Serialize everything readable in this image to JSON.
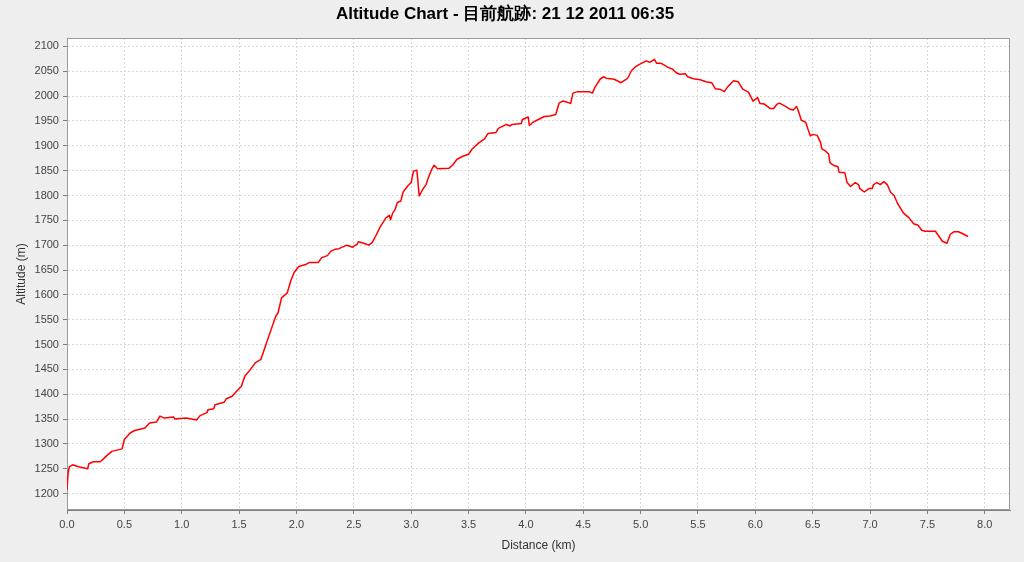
{
  "chart_data": {
    "type": "line",
    "title": "Altitude Chart - 目前航跡: 21 12 2011 06:35",
    "xlabel": "Distance (km)",
    "ylabel": "Altitude (m)",
    "x": [
      0,
      0.01,
      0.02,
      0.05,
      0.1,
      0.18,
      0.19,
      0.23,
      0.29,
      0.34,
      0.39,
      0.48,
      0.5,
      0.55,
      0.59,
      0.68,
      0.72,
      0.78,
      0.81,
      0.85,
      0.93,
      0.94,
      1.04,
      1.13,
      1.16,
      1.22,
      1.23,
      1.28,
      1.29,
      1.37,
      1.39,
      1.44,
      1.47,
      1.52,
      1.55,
      1.6,
      1.64,
      1.69,
      1.73,
      1.77,
      1.82,
      1.84,
      1.87,
      1.92,
      1.95,
      1.98,
      2.02,
      2.08,
      2.11,
      2.19,
      2.22,
      2.27,
      2.3,
      2.34,
      2.37,
      2.41,
      2.44,
      2.49,
      2.53,
      2.54,
      2.57,
      2.6,
      2.63,
      2.66,
      2.69,
      2.73,
      2.78,
      2.81,
      2.82,
      2.84,
      2.86,
      2.88,
      2.91,
      2.93,
      2.97,
      3.0,
      3.02,
      3.05,
      3.07,
      3.1,
      3.13,
      3.15,
      3.18,
      3.2,
      3.23,
      3.33,
      3.36,
      3.4,
      3.45,
      3.5,
      3.53,
      3.59,
      3.64,
      3.67,
      3.74,
      3.76,
      3.83,
      3.86,
      3.88,
      3.96,
      3.97,
      4.02,
      4.03,
      4.06,
      4.1,
      4.16,
      4.21,
      4.26,
      4.29,
      4.32,
      4.37,
      4.39,
      4.41,
      4.45,
      4.55,
      4.58,
      4.6,
      4.65,
      4.68,
      4.7,
      4.77,
      4.83,
      4.87,
      4.89,
      4.92,
      4.96,
      4.99,
      5.05,
      5.08,
      5.12,
      5.14,
      5.18,
      5.24,
      5.28,
      5.31,
      5.34,
      5.39,
      5.41,
      5.46,
      5.52,
      5.57,
      5.62,
      5.65,
      5.69,
      5.73,
      5.76,
      5.81,
      5.85,
      5.89,
      5.94,
      5.98,
      6.02,
      6.04,
      6.08,
      6.13,
      6.16,
      6.19,
      6.21,
      6.26,
      6.3,
      6.33,
      6.36,
      6.38,
      6.4,
      6.44,
      6.46,
      6.48,
      6.5,
      6.54,
      6.57,
      6.58,
      6.61,
      6.64,
      6.65,
      6.68,
      6.72,
      6.73,
      6.78,
      6.8,
      6.83,
      6.87,
      6.9,
      6.91,
      6.95,
      6.99,
      7.02,
      7.03,
      7.06,
      7.09,
      7.12,
      7.15,
      7.18,
      7.21,
      7.24,
      7.29,
      7.34,
      7.38,
      7.42,
      7.45,
      7.48,
      7.57,
      7.6,
      7.63,
      7.67,
      7.7,
      7.73,
      7.77,
      7.8,
      7.85
    ],
    "series": [
      {
        "color": "#ff0000",
        "values": [
          1209,
          1242,
          1254,
          1258,
          1254,
          1250,
          1260,
          1264,
          1264,
          1275,
          1285,
          1290,
          1309,
          1322,
          1327,
          1332,
          1342,
          1344,
          1356,
          1352,
          1354,
          1350,
          1352,
          1348,
          1357,
          1363,
          1369,
          1371,
          1379,
          1384,
          1391,
          1396,
          1404,
          1416,
          1436,
          1450,
          1463,
          1470,
          1497,
          1524,
          1557,
          1564,
          1594,
          1604,
          1628,
          1645,
          1657,
          1661,
          1665,
          1665,
          1675,
          1679,
          1688,
          1692,
          1693,
          1697,
          1700,
          1696,
          1702,
          1707,
          1705,
          1703,
          1700,
          1705,
          1718,
          1737,
          1755,
          1760,
          1751,
          1765,
          1772,
          1786,
          1789,
          1807,
          1819,
          1826,
          1849,
          1851,
          1799,
          1812,
          1822,
          1836,
          1853,
          1861,
          1854,
          1855,
          1861,
          1873,
          1879,
          1883,
          1893,
          1906,
          1914,
          1925,
          1927,
          1935,
          1943,
          1940,
          1943,
          1945,
          1953,
          1958,
          1941,
          1947,
          1952,
          1959,
          1960,
          1963,
          1986,
          1990,
          1987,
          1985,
          2006,
          2009,
          2009,
          2006,
          2017,
          2035,
          2039,
          2036,
          2034,
          2027,
          2033,
          2037,
          2051,
          2060,
          2064,
          2071,
          2068,
          2074,
          2066,
          2066,
          2058,
          2054,
          2047,
          2044,
          2045,
          2039,
          2035,
          2033,
          2029,
          2027,
          2015,
          2014,
          2009,
          2019,
          2031,
          2029,
          2014,
          2008,
          1990,
          1997,
          1985,
          1984,
          1975,
          1975,
          1984,
          1986,
          1980,
          1974,
          1972,
          1979,
          1967,
          1952,
          1947,
          1933,
          1920,
          1923,
          1921,
          1906,
          1894,
          1890,
          1883,
          1866,
          1861,
          1858,
          1847,
          1846,
          1826,
          1818,
          1826,
          1822,
          1814,
          1807,
          1814,
          1814,
          1822,
          1826,
          1822,
          1828,
          1822,
          1806,
          1800,
          1784,
          1765,
          1755,
          1743,
          1740,
          1730,
          1728,
          1728,
          1718,
          1708,
          1704,
          1722,
          1727,
          1727,
          1724,
          1718
        ]
      }
    ],
    "xlim": [
      0,
      8.22
    ],
    "xticks": [
      {
        "value": 0,
        "label": "0.0"
      },
      0.5,
      {
        "value": 1,
        "label": "1.0"
      },
      1.5,
      {
        "value": 2,
        "label": "2.0"
      },
      2.5,
      {
        "value": 3,
        "label": "3.0"
      },
      3.5,
      {
        "value": 4,
        "label": "4.0"
      },
      4.5,
      {
        "value": 5,
        "label": "5.0"
      },
      5.5,
      {
        "value": 6,
        "label": "6.0"
      },
      6.5,
      {
        "value": 7,
        "label": "7.0"
      },
      7.5,
      {
        "value": 8,
        "label": "8.0"
      }
    ],
    "ylim": [
      1167,
      2117
    ],
    "yticks": [
      1200,
      1250,
      1300,
      1350,
      1400,
      1450,
      1500,
      1550,
      1600,
      1650,
      1700,
      1750,
      1800,
      1850,
      1900,
      1950,
      2000,
      2050,
      2100
    ],
    "grid": true,
    "marker": "none",
    "line_style": "solid"
  }
}
